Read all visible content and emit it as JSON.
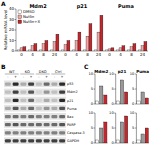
{
  "panel_labels": [
    "A",
    "B",
    "C"
  ],
  "chart_data": [
    {
      "type": "bar",
      "y_label": "Relative mRNA level",
      "categories": [
        "0",
        "4",
        "8",
        "24",
        "0",
        "4",
        "8",
        "24",
        "0",
        "4",
        "8",
        "24"
      ],
      "annotations": [
        "Mdm2",
        "p21",
        "Puma"
      ],
      "series": [
        {
          "name": "DMSO",
          "color": "#ffffff",
          "values": [
            1,
            1,
            1,
            1,
            1,
            1,
            1,
            1,
            1,
            1,
            1,
            1
          ]
        },
        {
          "name": "Nutlin",
          "color": "#f4a6a6",
          "values": [
            3,
            5,
            7,
            9,
            6,
            10,
            14,
            18,
            2,
            3,
            4,
            5
          ]
        },
        {
          "name": "Nutlin+X",
          "color": "#c0282d",
          "values": [
            4,
            7,
            10,
            16,
            10,
            18,
            26,
            34,
            3,
            5,
            7,
            9
          ]
        }
      ],
      "ylim": [
        0,
        40
      ],
      "yticks": [
        0,
        10,
        20,
        30,
        40
      ],
      "legend": "top-left",
      "grid": false
    },
    {
      "type": "bar",
      "title": "Mdm2",
      "categories": [
        null,
        null,
        null
      ],
      "values": [
        1,
        6,
        3
      ],
      "colors": [
        "#ffffff",
        "#999999",
        "#c0282d"
      ],
      "ylim": [
        0,
        10
      ],
      "yticks": [
        0,
        5,
        10
      ]
    },
    {
      "type": "bar",
      "title": "p21",
      "categories": [
        null,
        null,
        null
      ],
      "values": [
        1,
        8,
        4
      ],
      "colors": [
        "#ffffff",
        "#999999",
        "#c0282d"
      ],
      "ylim": [
        0,
        10
      ],
      "yticks": [
        0,
        5,
        10
      ]
    },
    {
      "type": "bar",
      "title": "Puma",
      "categories": [
        null,
        null,
        null
      ],
      "values": [
        1,
        4,
        2
      ],
      "colors": [
        "#ffffff",
        "#999999",
        "#c0282d"
      ],
      "ylim": [
        0,
        10
      ],
      "yticks": [
        0,
        5,
        10
      ]
    },
    {
      "type": "bar",
      "categories": [
        null,
        null,
        null
      ],
      "values": [
        1,
        5,
        7
      ],
      "colors": [
        "#ffffff",
        "#999999",
        "#c0282d"
      ],
      "ylim": [
        0,
        10
      ],
      "yticks": [
        0,
        5,
        10
      ]
    },
    {
      "type": "bar",
      "categories": [
        null,
        null,
        null
      ],
      "values": [
        1,
        7,
        9
      ],
      "colors": [
        "#ffffff",
        "#999999",
        "#c0282d"
      ],
      "ylim": [
        0,
        10
      ],
      "yticks": [
        0,
        5,
        10
      ]
    },
    {
      "type": "bar",
      "categories": [
        null,
        null,
        null
      ],
      "values": [
        1,
        3,
        5
      ],
      "colors": [
        "#ffffff",
        "#999999",
        "#c0282d"
      ],
      "ylim": [
        0,
        10
      ],
      "yticks": [
        0,
        5,
        10
      ]
    }
  ],
  "blot": {
    "groups": [
      "WT",
      "KO",
      "DKO",
      "Ctrl"
    ],
    "lanes": [
      "-",
      "+",
      "-",
      "+",
      "-",
      "+",
      "-",
      "+"
    ],
    "rows": [
      {
        "label": "p53",
        "bands": [
          0.3,
          0.9,
          0.3,
          0.8,
          0.2,
          0.6,
          0.3,
          0.9
        ]
      },
      {
        "label": "Mdm2",
        "bands": [
          0.2,
          0.8,
          0.2,
          0.7,
          0.1,
          0.4,
          0.2,
          0.8
        ]
      },
      {
        "label": "p21",
        "bands": [
          0.2,
          0.9,
          0.2,
          0.6,
          0.1,
          0.3,
          0.2,
          0.9
        ]
      },
      {
        "label": "Puma",
        "bands": [
          0.3,
          0.7,
          0.3,
          0.6,
          0.2,
          0.4,
          0.3,
          0.7
        ]
      },
      {
        "label": "Bax",
        "bands": [
          0.5,
          0.6,
          0.5,
          0.6,
          0.5,
          0.5,
          0.5,
          0.6
        ]
      },
      {
        "label": "PARP",
        "bands": [
          0.6,
          0.7,
          0.6,
          0.6,
          0.6,
          0.6,
          0.6,
          0.7
        ]
      },
      {
        "label": "Caspase-3",
        "bands": [
          0.5,
          0.5,
          0.5,
          0.5,
          0.5,
          0.5,
          0.5,
          0.5
        ]
      },
      {
        "label": "GAPDH",
        "bands": [
          0.8,
          0.8,
          0.8,
          0.8,
          0.8,
          0.8,
          0.8,
          0.8
        ]
      }
    ]
  }
}
